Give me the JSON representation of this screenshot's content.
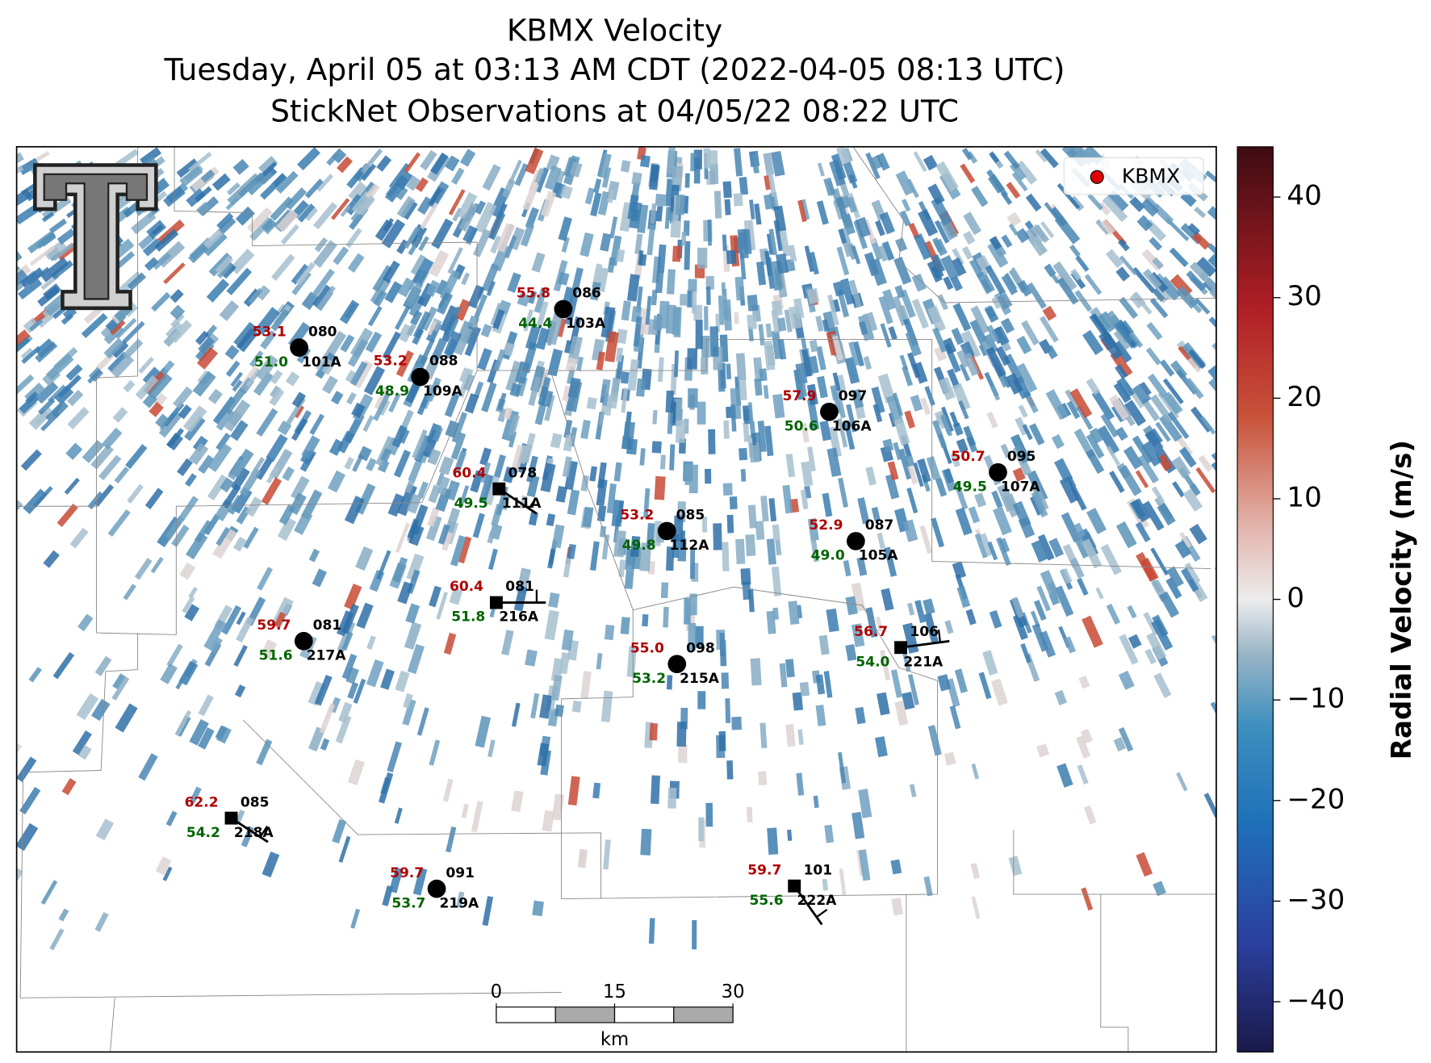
{
  "header": {
    "title": "KBMX Velocity",
    "subtitle": "Tuesday, April 05 at 03:13 AM CDT (2022-04-05 08:13 UTC)",
    "observations": "StickNet Observations at 04/05/22 08:22 UTC"
  },
  "legend": {
    "label": "KBMX",
    "color": "#e00000"
  },
  "colorbar": {
    "label": "Radial Velocity (m/s)",
    "lim": [
      -45,
      45
    ],
    "ticks": [
      40,
      30,
      20,
      10,
      0,
      {
        "value": -10,
        "label": "−10"
      },
      {
        "value": -20,
        "label": "−20"
      },
      {
        "value": -30,
        "label": "−30"
      },
      {
        "value": -40,
        "label": "−40"
      }
    ]
  },
  "scale_bar": {
    "ticks": [
      0,
      15,
      30
    ],
    "unit": "km"
  },
  "stations": [
    {
      "id": "101A",
      "temperature": "53.1",
      "pressure": "080",
      "dewpoint": "51.0"
    },
    {
      "id": "109A",
      "temperature": "53.2",
      "pressure": "088",
      "dewpoint": "48.9"
    },
    {
      "id": "103A",
      "temperature": "55.8",
      "pressure": "086",
      "dewpoint": "44.4"
    },
    {
      "id": "106A",
      "temperature": "57.9",
      "pressure": "097",
      "dewpoint": "50.6"
    },
    {
      "id": "107A",
      "temperature": "50.7",
      "pressure": "095",
      "dewpoint": "49.5"
    },
    {
      "id": "111A",
      "temperature": "60.4",
      "pressure": "078",
      "dewpoint": "49.5"
    },
    {
      "id": "112A",
      "temperature": "53.2",
      "pressure": "085",
      "dewpoint": "49.8"
    },
    {
      "id": "105A",
      "temperature": "52.9",
      "pressure": "087",
      "dewpoint": "49.0"
    },
    {
      "id": "216A",
      "temperature": "60.4",
      "pressure": "081",
      "dewpoint": "51.8"
    },
    {
      "id": "217A",
      "temperature": "59.7",
      "pressure": "081",
      "dewpoint": "51.6"
    },
    {
      "id": "215A",
      "temperature": "55.0",
      "pressure": "098",
      "dewpoint": "53.2"
    },
    {
      "id": "221A",
      "temperature": "56.7",
      "pressure": "106",
      "dewpoint": "54.0"
    },
    {
      "id": "218A",
      "temperature": "62.2",
      "pressure": "085",
      "dewpoint": "54.2"
    },
    {
      "id": "219A",
      "temperature": "59.7",
      "pressure": "091",
      "dewpoint": "53.7"
    },
    {
      "id": "222A",
      "temperature": "59.7",
      "pressure": "101",
      "dewpoint": "55.6"
    }
  ]
}
